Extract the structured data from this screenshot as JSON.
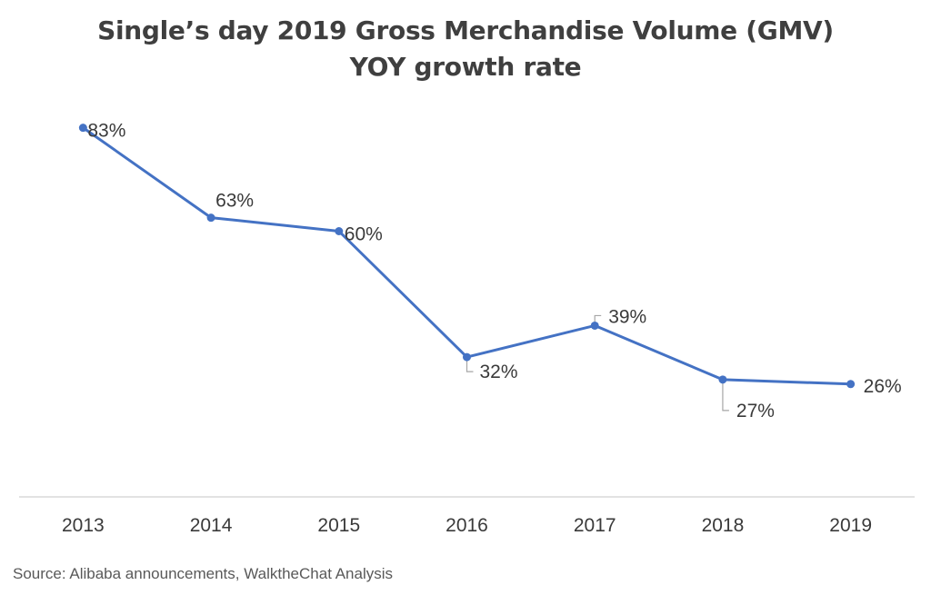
{
  "chart_data": {
    "type": "line",
    "title_line1": "Single’s day 2019 Gross Merchandise Volume (GMV)",
    "title_line2": "YOY growth rate",
    "categories": [
      "2013",
      "2014",
      "2015",
      "2016",
      "2017",
      "2018",
      "2019"
    ],
    "series": [
      {
        "name": "YOY growth rate",
        "values": [
          83,
          63,
          60,
          32,
          39,
          27,
          26
        ],
        "labels": [
          "83%",
          "63%",
          "60%",
          "32%",
          "39%",
          "27%",
          "26%"
        ],
        "color": "#4472C4"
      }
    ],
    "xlabel": "",
    "ylabel": "",
    "ylim": [
      0,
      90
    ],
    "grid": false,
    "axis_color": "#d9d9d9",
    "leader_line_color": "#a6a6a6"
  },
  "source": "Source: Alibaba announcements, WalktheChat Analysis"
}
